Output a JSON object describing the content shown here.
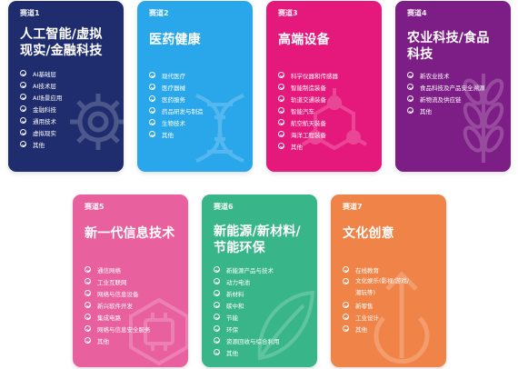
{
  "tracks": [
    {
      "tag": "赛道1",
      "title": "人工智能/虚拟\n现实/金融科技",
      "color": "#1f2d6e",
      "icon": "gear-icon",
      "items": [
        "AI基础层",
        "AI技术层",
        "AI场景应用",
        "金融科技",
        "通用技术",
        "虚拟现实",
        "其他"
      ]
    },
    {
      "tag": "赛道2",
      "title": "医药健康",
      "color": "#2aa7eb",
      "icon": "dna-icon",
      "items": [
        "现代医疗",
        "医疗器械",
        "医药服务",
        "药品研发与制造",
        "生物技术",
        "其他"
      ]
    },
    {
      "tag": "赛道3",
      "title": "高端设备",
      "color": "#e5187c",
      "icon": "hexagon-network-icon",
      "items": [
        "科学仪器和传感器",
        "智能制造装备",
        "轨道交通装备",
        "智能汽车",
        "航空航天装备",
        "海洋工程装备",
        "其他"
      ]
    },
    {
      "tag": "赛道4",
      "title": "农业科技/食品\n科技",
      "color": "#7d1d86",
      "icon": "wheat-icon",
      "items": [
        "新农业技术",
        "食品科技及产品安全溯源",
        "新物流及供应链",
        "其他"
      ]
    },
    {
      "tag": "赛道5",
      "title": "新一代信息技术",
      "color": "#e9609f",
      "icon": "hexagon-chip-icon",
      "items": [
        "通信网络",
        "工业互联网",
        "网络与信息设备",
        "新兴软件开发",
        "集成电路",
        "网络与信息安全服务",
        "其他"
      ]
    },
    {
      "tag": "赛道6",
      "title": "新能源/新材料/\n节能环保",
      "color": "#38b68a",
      "icon": "leaf-icon",
      "items": [
        "新能源产品与技术",
        "动力电池",
        "新材料",
        "碳中和",
        "节能",
        "环保",
        "资源回收与综合利用",
        "其他"
      ]
    },
    {
      "tag": "赛道7",
      "title": "文化创意",
      "color": "#f08448",
      "icon": "upload-arrow-icon",
      "items": [
        "在线教育",
        "文化娱乐(影视/游戏/\n潮玩等)",
        "新零售",
        "工业设计",
        "其他"
      ]
    }
  ]
}
